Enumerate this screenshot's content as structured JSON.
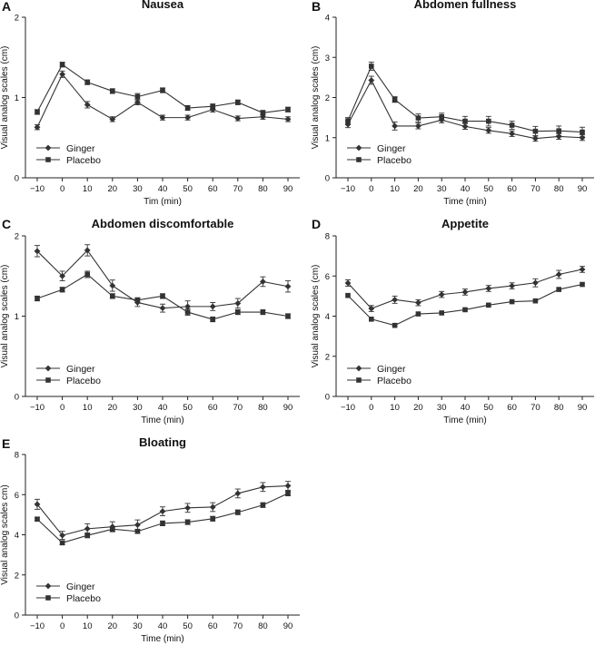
{
  "chart_data": [
    {
      "type": "line",
      "letter": "A",
      "title": "Nausea",
      "xlabel": "Tim (min)",
      "ylabel": "Visual analog scales (cm)",
      "ylim": [
        0,
        2
      ],
      "yticks": [
        0,
        1,
        2
      ],
      "x": [
        -10,
        0,
        10,
        20,
        30,
        40,
        50,
        60,
        70,
        80,
        90
      ],
      "xtick_labels": [
        "−10",
        "0",
        "10",
        "20",
        "30",
        "40",
        "50",
        "60",
        "70",
        "80",
        "90"
      ],
      "legend_position": "lower-left",
      "series": [
        {
          "name": "Ginger",
          "marker": "diamond",
          "values": [
            0.63,
            1.29,
            0.91,
            0.73,
            0.94,
            0.75,
            0.75,
            0.85,
            0.74,
            0.76,
            0.73
          ],
          "errors": [
            0.03,
            0.04,
            0.04,
            0.03,
            0.03,
            0.03,
            0.03,
            0.03,
            0.03,
            0.03,
            0.03
          ]
        },
        {
          "name": "Placebo",
          "marker": "square",
          "values": [
            0.82,
            1.41,
            1.19,
            1.08,
            1.01,
            1.09,
            0.87,
            0.89,
            0.94,
            0.81,
            0.85
          ],
          "errors": [
            0.03,
            0.03,
            0.03,
            0.03,
            0.04,
            0.03,
            0.03,
            0.03,
            0.03,
            0.03,
            0.03
          ]
        }
      ]
    },
    {
      "type": "line",
      "letter": "B",
      "title": "Abdomen fullness",
      "xlabel": "Time (min)",
      "ylabel": "Visual analog scales (cm)",
      "ylim": [
        0,
        4
      ],
      "yticks": [
        0,
        1,
        2,
        3,
        4
      ],
      "x": [
        -10,
        0,
        10,
        20,
        30,
        40,
        50,
        60,
        70,
        80,
        90
      ],
      "xtick_labels": [
        "−10",
        "0",
        "10",
        "20",
        "30",
        "40",
        "50",
        "60",
        "70",
        "80",
        "90"
      ],
      "legend_position": "lower-left",
      "series": [
        {
          "name": "Ginger",
          "marker": "diamond",
          "values": [
            1.33,
            2.43,
            1.29,
            1.29,
            1.44,
            1.28,
            1.18,
            1.1,
            0.98,
            1.03,
            1.0
          ],
          "errors": [
            0.08,
            0.1,
            0.1,
            0.07,
            0.07,
            0.07,
            0.07,
            0.07,
            0.07,
            0.07,
            0.07
          ]
        },
        {
          "name": "Placebo",
          "marker": "square",
          "values": [
            1.42,
            2.78,
            1.95,
            1.49,
            1.52,
            1.41,
            1.41,
            1.31,
            1.16,
            1.17,
            1.14
          ],
          "errors": [
            0.08,
            0.1,
            0.07,
            0.1,
            0.09,
            0.12,
            0.12,
            0.1,
            0.12,
            0.12,
            0.12
          ]
        }
      ]
    },
    {
      "type": "line",
      "letter": "C",
      "title": "Abdomen discomfortable",
      "xlabel": "Time (min)",
      "ylabel": "Visual analog scales (cm)",
      "ylim": [
        0,
        2
      ],
      "yticks": [
        0,
        1,
        2
      ],
      "x": [
        -10,
        0,
        10,
        20,
        30,
        40,
        50,
        60,
        70,
        80,
        90
      ],
      "xtick_labels": [
        "−10",
        "0",
        "10",
        "20",
        "30",
        "40",
        "50",
        "60",
        "70",
        "80",
        "90"
      ],
      "legend_position": "lower-left",
      "series": [
        {
          "name": "Ginger",
          "marker": "diamond",
          "values": [
            1.81,
            1.5,
            1.82,
            1.38,
            1.17,
            1.1,
            1.12,
            1.12,
            1.16,
            1.43,
            1.37
          ],
          "errors": [
            0.07,
            0.06,
            0.07,
            0.07,
            0.05,
            0.05,
            0.07,
            0.05,
            0.06,
            0.06,
            0.07
          ]
        },
        {
          "name": "Placebo",
          "marker": "square",
          "values": [
            1.22,
            1.33,
            1.52,
            1.25,
            1.2,
            1.25,
            1.05,
            0.96,
            1.05,
            1.05,
            1.0
          ],
          "errors": [
            0.03,
            0.03,
            0.04,
            0.03,
            0.03,
            0.03,
            0.04,
            0.03,
            0.03,
            0.03,
            0.03
          ]
        }
      ]
    },
    {
      "type": "line",
      "letter": "D",
      "title": "Appetite",
      "xlabel": "Time (min)",
      "ylabel": "Visual analog scales (cm)",
      "ylim": [
        0,
        8
      ],
      "yticks": [
        0,
        2,
        4,
        6,
        8
      ],
      "x": [
        -10,
        0,
        10,
        20,
        30,
        40,
        50,
        60,
        70,
        80,
        90
      ],
      "xtick_labels": [
        "−10",
        "0",
        "10",
        "20",
        "30",
        "40",
        "50",
        "60",
        "70",
        "80",
        "90"
      ],
      "legend_position": "lower-left",
      "series": [
        {
          "name": "Ginger",
          "marker": "diamond",
          "values": [
            5.65,
            4.38,
            4.82,
            4.67,
            5.08,
            5.2,
            5.38,
            5.51,
            5.66,
            6.08,
            6.33
          ],
          "errors": [
            0.16,
            0.15,
            0.18,
            0.15,
            0.15,
            0.15,
            0.15,
            0.15,
            0.2,
            0.2,
            0.15
          ]
        },
        {
          "name": "Placebo",
          "marker": "square",
          "values": [
            5.03,
            3.85,
            3.54,
            4.11,
            4.16,
            4.32,
            4.55,
            4.72,
            4.76,
            5.33,
            5.58
          ]
        }
      ]
    },
    {
      "type": "line",
      "letter": "E",
      "title": "Bloating",
      "xlabel": "Time (min)",
      "ylabel": "Visual analog scales cm)",
      "ylim": [
        0,
        8
      ],
      "yticks": [
        0,
        2,
        4,
        6,
        8
      ],
      "x": [
        -10,
        0,
        10,
        20,
        30,
        40,
        50,
        60,
        70,
        80,
        90
      ],
      "xtick_labels": [
        "−10",
        "0",
        "10",
        "20",
        "30",
        "40",
        "50",
        "60",
        "70",
        "80",
        "90"
      ],
      "legend_position": "lower-left",
      "series": [
        {
          "name": "Ginger",
          "marker": "diamond",
          "values": [
            5.52,
            3.97,
            4.3,
            4.4,
            4.49,
            5.17,
            5.34,
            5.38,
            6.06,
            6.38,
            6.44
          ],
          "errors": [
            0.25,
            0.2,
            0.25,
            0.25,
            0.25,
            0.22,
            0.22,
            0.22,
            0.22,
            0.22,
            0.22
          ]
        },
        {
          "name": "Placebo",
          "marker": "square",
          "values": [
            4.78,
            3.6,
            3.97,
            4.28,
            4.17,
            4.57,
            4.63,
            4.8,
            5.12,
            5.48,
            6.06
          ],
          "errors": [
            0.1,
            0.1,
            0.12,
            0.1,
            0.1,
            0.12,
            0.12,
            0.12,
            0.12,
            0.12,
            0.12
          ]
        }
      ]
    }
  ]
}
